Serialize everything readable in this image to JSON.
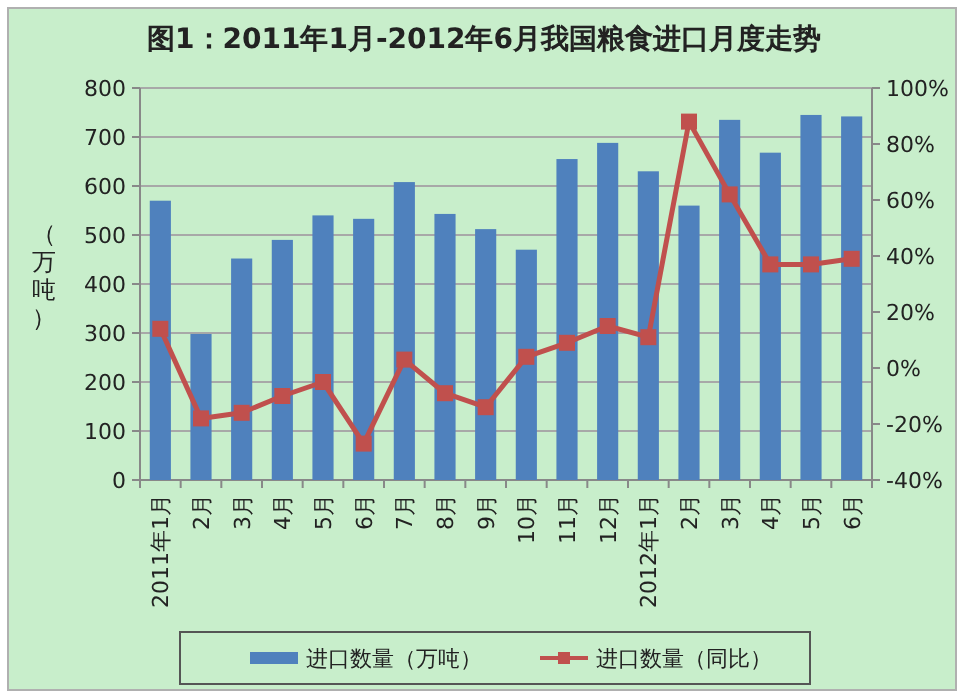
{
  "chart_data": {
    "type": "bar",
    "title": "图1：2011年1月-2012年6月我国粮食进口月度走势",
    "ylabel": "（万吨）",
    "categories": [
      "2011年1月",
      "2月",
      "3月",
      "4月",
      "5月",
      "6月",
      "7月",
      "8月",
      "9月",
      "10月",
      "11月",
      "12月",
      "2012年1月",
      "2月",
      "3月",
      "4月",
      "5月",
      "6月"
    ],
    "series": [
      {
        "name": "进口数量（万吨）",
        "color": "#4f81bd",
        "values": [
          570,
          298,
          452,
          490,
          540,
          533,
          608,
          543,
          512,
          470,
          655,
          688,
          630,
          560,
          735,
          668,
          745,
          742
        ]
      },
      {
        "name": "进口数量（同比）",
        "type": "line",
        "axis": "y2",
        "color": "#c0504d",
        "values": [
          14,
          -18,
          -16,
          -10,
          -5,
          -27,
          3,
          -9,
          -14,
          4,
          9,
          15,
          11,
          88,
          62,
          37,
          37,
          39
        ]
      }
    ],
    "ylim": [
      0,
      800
    ],
    "yticks": [
      0,
      100,
      200,
      300,
      400,
      500,
      600,
      700,
      800
    ],
    "y2lim": [
      -40,
      100
    ],
    "y2ticks": [
      {
        "value": -40,
        "label": "-40%"
      },
      {
        "value": -20,
        "label": "-20%"
      },
      {
        "value": 0,
        "label": "0%"
      },
      {
        "value": 20,
        "label": "20%"
      },
      {
        "value": 40,
        "label": "40%"
      },
      {
        "value": 60,
        "label": "60%"
      },
      {
        "value": 80,
        "label": "80%"
      },
      {
        "value": 100,
        "label": "100%"
      }
    ],
    "grid": "y",
    "legend": "bottom",
    "marker": "square"
  }
}
